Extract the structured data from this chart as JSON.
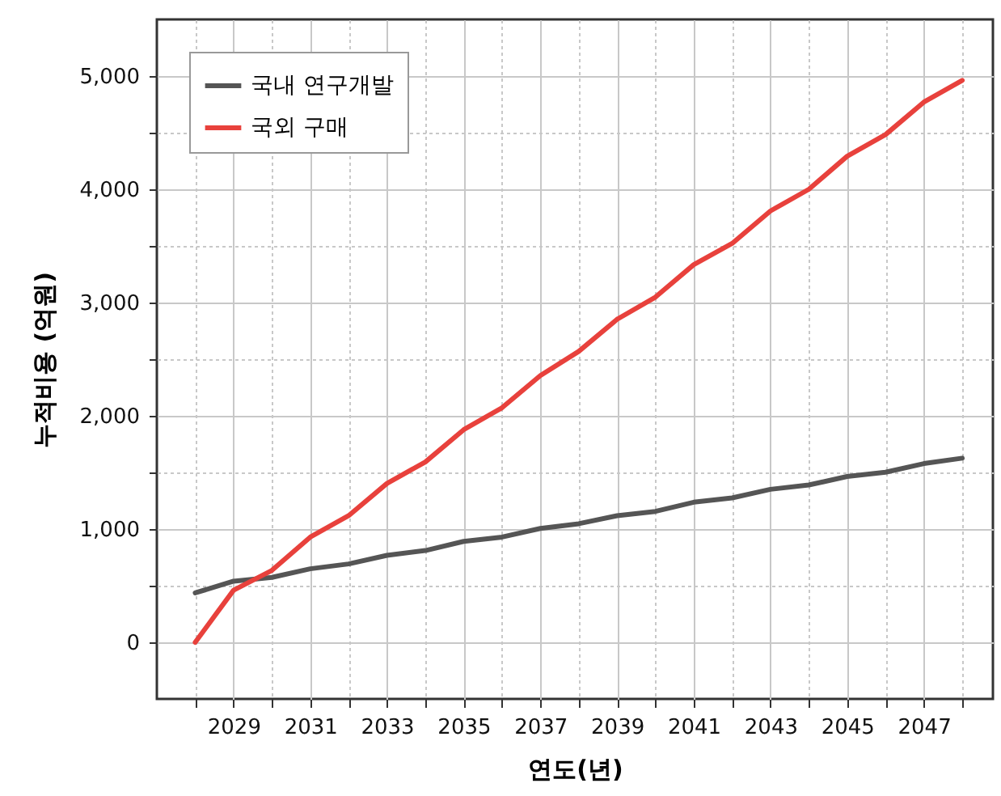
{
  "chart_data": {
    "type": "line",
    "xlabel": "연도(년)",
    "ylabel": "누적비용 (억원)",
    "x": [
      2028,
      2029,
      2030,
      2031,
      2032,
      2033,
      2034,
      2035,
      2036,
      2037,
      2038,
      2039,
      2040,
      2041,
      2042,
      2043,
      2044,
      2045,
      2046,
      2047,
      2048
    ],
    "series": [
      {
        "name": "국내 연구개발",
        "color": "#555555",
        "values": [
          436,
          540,
          573,
          649,
          692,
          768,
          810,
          891,
          929,
          1005,
          1047,
          1118,
          1156,
          1237,
          1275,
          1351,
          1389,
          1464,
          1502,
          1578,
          1626
        ]
      },
      {
        "name": "국외 구매",
        "color": "#e8413c",
        "values": [
          0,
          460,
          635,
          929,
          1118,
          1403,
          1592,
          1877,
          2071,
          2355,
          2569,
          2852,
          3048,
          3335,
          3522,
          3809,
          4000,
          4292,
          4483,
          4770,
          4962
        ]
      }
    ],
    "xlim": [
      2027,
      2048.8
    ],
    "ylim": [
      -500,
      5500
    ],
    "xticks": [
      {
        "value": 2028,
        "label": null
      },
      2029,
      {
        "value": 2030,
        "label": null
      },
      2031,
      {
        "value": 2032,
        "label": null
      },
      2033,
      {
        "value": 2034,
        "label": null
      },
      2035,
      {
        "value": 2036,
        "label": null
      },
      2037,
      {
        "value": 2038,
        "label": null
      },
      2039,
      {
        "value": 2040,
        "label": null
      },
      2041,
      {
        "value": 2042,
        "label": null
      },
      2043,
      {
        "value": 2044,
        "label": null
      },
      2045,
      {
        "value": 2046,
        "label": null
      },
      2047,
      {
        "value": 2048,
        "label": null
      }
    ],
    "yticks": [
      0,
      {
        "value": 500,
        "label": null
      },
      {
        "value": 1000,
        "label": "1,000"
      },
      {
        "value": 1500,
        "label": null
      },
      {
        "value": 2000,
        "label": "2,000"
      },
      {
        "value": 2500,
        "label": null
      },
      {
        "value": 3000,
        "label": "3,000"
      },
      {
        "value": 3500,
        "label": null
      },
      {
        "value": 4000,
        "label": "4,000"
      },
      {
        "value": 4500,
        "label": null
      },
      {
        "value": 5000,
        "label": "5,000"
      }
    ],
    "grid": true,
    "legend": "top left",
    "line_style": "solid"
  }
}
